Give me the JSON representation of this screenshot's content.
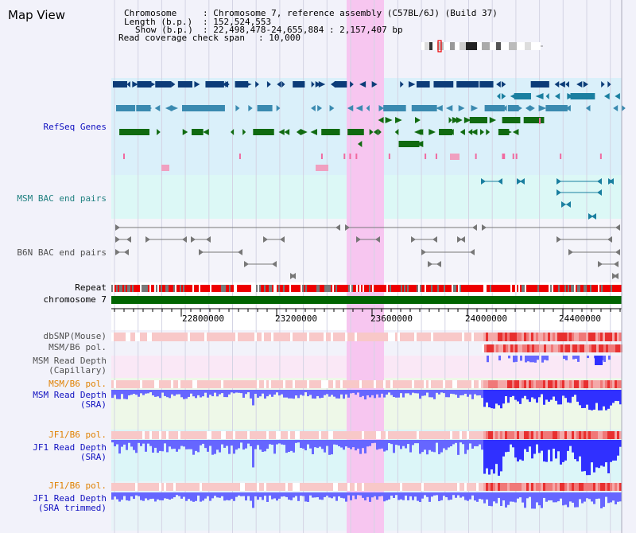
{
  "view_title": "Map View",
  "info": {
    "chromosome_label": "Chromosome",
    "chromosome_value": ": Chromosome 7, reference assembly (C57BL/6J) (Build 37)",
    "length_label": "Length (b.p.)",
    "length_value": ": 152,524,553",
    "show_label": "Show (b.p.)",
    "show_value": ": 22,498,478-24,655,884 : 2,157,407 bp",
    "coverage_label": "Read coverage check span",
    "coverage_value": ": 10,000"
  },
  "tracks": {
    "refseq": "RefSeq Genes",
    "msm_bac": "MSM BAC end pairs",
    "b6n_bac": "B6N BAC end pairs",
    "repeat": "Repeat",
    "chromosome": "chromosome 7",
    "dbsnp": "dbSNP(Mouse)",
    "msm_b6_pol_1": "MSM/B6 pol.",
    "msm_depth_cap_1": "MSM Read Depth",
    "msm_depth_cap_2": "(Capillary)",
    "msm_b6_pol_2": "MSM/B6 pol.",
    "msm_depth_sra_1": "MSM Read Depth",
    "msm_depth_sra_2": "(SRA)",
    "jf1_b6_pol_1": "JF1/B6 pol.",
    "jf1_depth_sra_1": "JF1 Read Depth",
    "jf1_depth_sra_2": "(SRA)",
    "jf1_b6_pol_2": "JF1/B6 pol.",
    "jf1_depth_trim_1": "JF1 Read Depth",
    "jf1_depth_trim_2": "(SRA trimmed)"
  },
  "axis_ticks": [
    "22800000",
    "23200000",
    "23600000",
    "24000000",
    "24400000"
  ],
  "colors": {
    "refseq_bg": "#daf0fa",
    "msm_bac_bg": "#dcf8f6",
    "repeat_red": "#ee0000",
    "chromosome_green": "#006400",
    "depth_blue": "#6666ff",
    "highlight_pink": "#f7c6f0"
  }
}
